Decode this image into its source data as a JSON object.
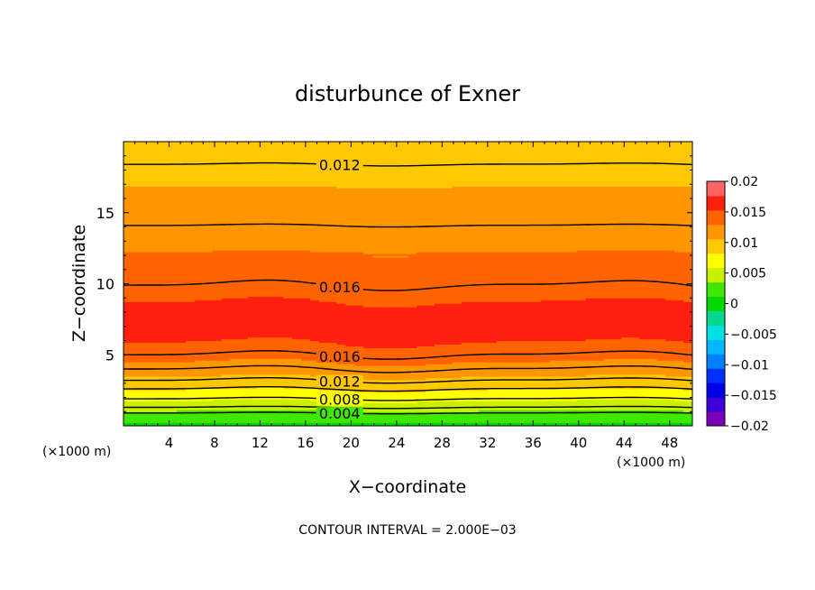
{
  "chart_data": {
    "type": "contour",
    "title": "disturbunce of Exner",
    "xlabel": "X−coordinate",
    "ylabel": "Z−coordinate",
    "x_unit": "(×1000 m)",
    "x_unit_right": "(×1000 m)",
    "footer": "CONTOUR INTERVAL = 2.000E−03",
    "xlim": [
      0,
      50
    ],
    "ylim": [
      0,
      20
    ],
    "x_ticks": [
      4,
      8,
      12,
      16,
      20,
      24,
      28,
      32,
      36,
      40,
      44,
      48
    ],
    "x_tick_labels": [
      "4",
      "8",
      "12",
      "16",
      "20",
      "24",
      "28",
      "32",
      "36",
      "40",
      "44",
      "48"
    ],
    "y_ticks": [
      5,
      10,
      15
    ],
    "y_tick_labels": [
      "5",
      "10",
      "15"
    ],
    "colorbar": {
      "min": -0.02,
      "max": 0.02,
      "levels": [
        -0.02,
        -0.0175,
        -0.015,
        -0.0125,
        -0.01,
        -0.0075,
        -0.005,
        -0.0025,
        0,
        0.0025,
        0.005,
        0.0075,
        0.01,
        0.0125,
        0.015,
        0.0175,
        0.02
      ],
      "colors": [
        "#7a00b8",
        "#3c00d8",
        "#0000e6",
        "#0030ff",
        "#0080ff",
        "#00b8ff",
        "#00e0e0",
        "#00d890",
        "#00d800",
        "#40e800",
        "#c8f000",
        "#ffff00",
        "#ffc800",
        "#ff9600",
        "#ff6400",
        "#ff2010",
        "#ff6464"
      ],
      "tick_values": [
        "0.02",
        "0.015",
        "0.01",
        "0.005",
        "0",
        "−0.005",
        "−0.01",
        "−0.015",
        "−0.02"
      ]
    },
    "profile": [
      {
        "z": 0.0,
        "value": 0.0018
      },
      {
        "z": 0.2,
        "value": 0.0025
      },
      {
        "z": 0.6,
        "value": 0.0036
      },
      {
        "z": 1.0,
        "value": 0.0048
      },
      {
        "z": 1.4,
        "value": 0.0062
      },
      {
        "z": 1.8,
        "value": 0.0076
      },
      {
        "z": 2.2,
        "value": 0.0088
      },
      {
        "z": 2.6,
        "value": 0.0102
      },
      {
        "z": 3.2,
        "value": 0.0118
      },
      {
        "z": 4.0,
        "value": 0.014
      },
      {
        "z": 5.0,
        "value": 0.016
      },
      {
        "z": 6.0,
        "value": 0.0177
      },
      {
        "z": 7.2,
        "value": 0.0185
      },
      {
        "z": 8.5,
        "value": 0.0178
      },
      {
        "z": 9.8,
        "value": 0.0162
      },
      {
        "z": 11.5,
        "value": 0.0154
      },
      {
        "z": 14.0,
        "value": 0.0141
      },
      {
        "z": 16.5,
        "value": 0.0126
      },
      {
        "z": 18.5,
        "value": 0.012
      },
      {
        "z": 20.0,
        "value": 0.0114
      }
    ],
    "contours": [
      {
        "value": 0.004,
        "label": "0.004",
        "z": 0.9
      },
      {
        "value": 0.006,
        "label": "",
        "z": 1.3
      },
      {
        "value": 0.008,
        "label": "0.008",
        "z": 1.9
      },
      {
        "value": 0.01,
        "label": "",
        "z": 2.6
      },
      {
        "value": 0.012,
        "label": "0.012",
        "z": 3.2
      },
      {
        "value": 0.014,
        "label": "",
        "z": 4.0
      },
      {
        "value": 0.016,
        "label": "0.016",
        "z": 5.0
      },
      {
        "value": 0.016,
        "label": "0.016",
        "z": 9.9
      },
      {
        "value": 0.014,
        "label": "",
        "z": 14.1
      },
      {
        "value": 0.012,
        "label": "0.012",
        "z": 18.4
      }
    ]
  }
}
